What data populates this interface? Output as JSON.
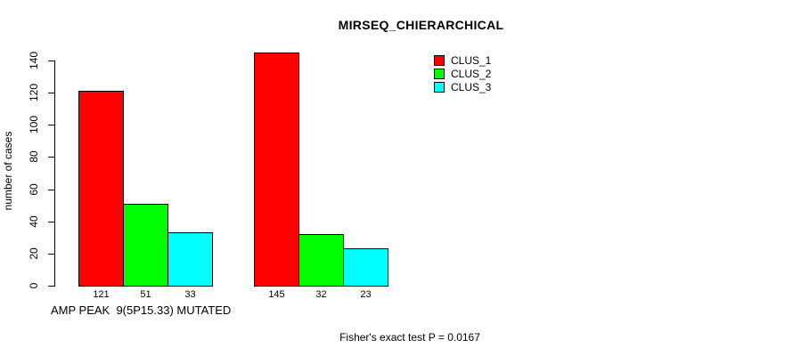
{
  "chart_data": {
    "type": "bar",
    "title": "MIRSEQ_CHIERARCHICAL",
    "ylabel": "number of cases",
    "group_label": "AMP PEAK  9(5P15.33) MUTATED",
    "footnote": "Fisher's exact test P = 0.0167",
    "categories": [
      "AMP PEAK  9(5P15.33) MUTATED",
      ""
    ],
    "series": [
      {
        "name": "CLUS_1",
        "color": "#ff0000",
        "values": [
          121,
          145
        ]
      },
      {
        "name": "CLUS_2",
        "color": "#00ff00",
        "values": [
          51,
          32
        ]
      },
      {
        "name": "CLUS_3",
        "color": "#00ffff",
        "values": [
          33,
          23
        ]
      }
    ],
    "bar_value_labels": [
      [
        121,
        51,
        33
      ],
      [
        145,
        32,
        23
      ]
    ],
    "yticks": [
      0,
      20,
      40,
      60,
      80,
      100,
      120,
      140
    ],
    "ylim": [
      0,
      150
    ],
    "grid": false,
    "legend_position": "top-right",
    "axis_color": "#000000",
    "background": "#ffffff"
  }
}
